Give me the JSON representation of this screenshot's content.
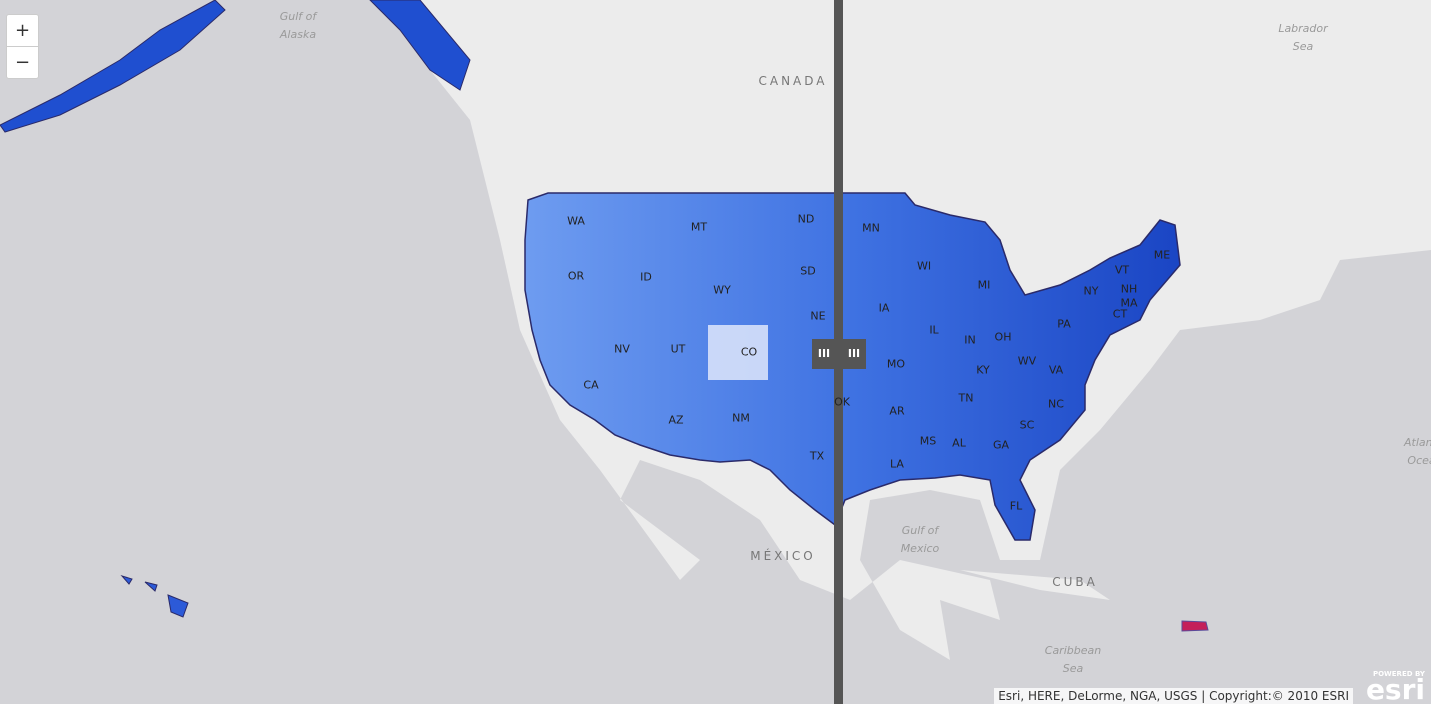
{
  "controls": {
    "zoom_in": "+",
    "zoom_out": "−",
    "swipe_handle": "III"
  },
  "places": [
    "Gulf of Alaska",
    "CANADA",
    "Labrador Sea",
    "MÉXICO",
    "Gulf of Mexico",
    "CUBA",
    "Caribbean Sea",
    "Atlantic Ocean"
  ],
  "states": [
    "WA",
    "OR",
    "ID",
    "MT",
    "ND",
    "SD",
    "WY",
    "NE",
    "NV",
    "UT",
    "CO",
    "CA",
    "AZ",
    "NM",
    "TX",
    "OK",
    "MN",
    "WI",
    "MI",
    "IA",
    "IL",
    "IN",
    "OH",
    "PA",
    "NY",
    "VT",
    "NH",
    "MA",
    "CT",
    "ME",
    "MO",
    "KY",
    "WV",
    "VA",
    "NC",
    "TN",
    "AR",
    "MS",
    "AL",
    "GA",
    "SC",
    "LA",
    "FL"
  ],
  "attribution": "Esri, HERE, DeLorme, NGA, USGS | Copyright:© 2010 ESRI",
  "logo": {
    "caption": "POWERED BY",
    "brand": "esri"
  }
}
